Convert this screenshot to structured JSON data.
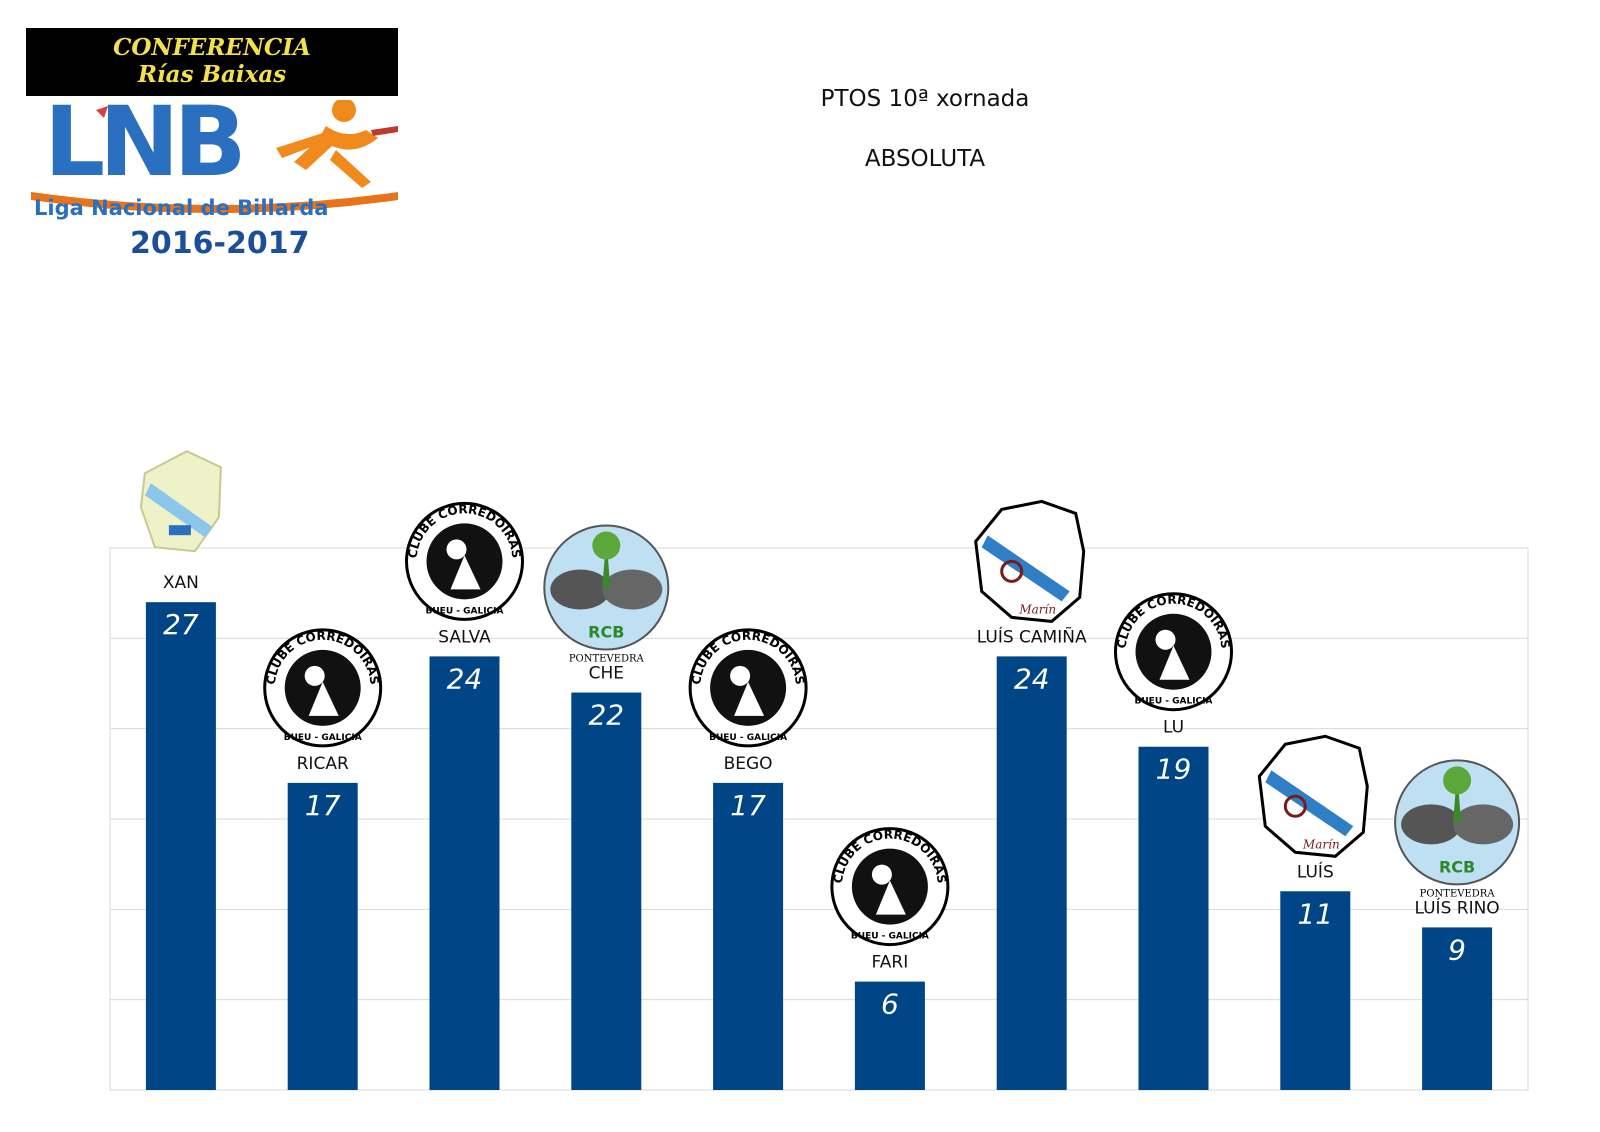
{
  "header": {
    "conference_line1": "CONFERENCIA",
    "conference_line2": "Rías Baixas",
    "logo_letters": "LNB",
    "league_name": "Liga Nacional de Billarda",
    "season": "2016-2017",
    "title": "PTOS 10ª xornada",
    "subtitle": "ABSOLUTA"
  },
  "colors": {
    "bar": "#004586",
    "grid": "#d9d9d9",
    "label": "#111111",
    "value": "#ffffff"
  },
  "chart_data": {
    "type": "bar",
    "title": "PTOS 10ª xornada",
    "subtitle": "ABSOLUTA",
    "categories": [
      "XAN",
      "RICAR",
      "SALVA",
      "CHE",
      "BEGO",
      "FARI",
      "LUÍS CAMIÑA",
      "LU",
      "LUÍS",
      "LUÍS RINO"
    ],
    "values": [
      27,
      17,
      24,
      22,
      17,
      6,
      24,
      19,
      11,
      9
    ],
    "ylim": [
      0,
      30
    ],
    "grid": true,
    "legend": "none",
    "data_labels": true
  },
  "club_logos": [
    {
      "category": "XAN",
      "icon": "lua-e-forza-logo"
    },
    {
      "category": "RICAR",
      "icon": "clube-corredoiras-logo",
      "text": "CLUBE CORREDOIRAS",
      "sub": "BUEU - GALICIA"
    },
    {
      "category": "SALVA",
      "icon": "clube-corredoiras-logo",
      "text": "CLUBE CORREDOIRAS",
      "sub": "BUEU - GALICIA"
    },
    {
      "category": "CHE",
      "icon": "rcb-pontevedra-logo",
      "text": "RCB",
      "sub": "PONTEVEDRA"
    },
    {
      "category": "BEGO",
      "icon": "clube-corredoiras-logo",
      "text": "CLUBE CORREDOIRAS",
      "sub": "BUEU - GALICIA"
    },
    {
      "category": "FARI",
      "icon": "clube-corredoiras-logo",
      "text": "CLUBE CORREDOIRAS",
      "sub": "BUEU - GALICIA"
    },
    {
      "category": "LUÍS CAMIÑA",
      "icon": "marin-galicia-map-logo",
      "text": "Marín"
    },
    {
      "category": "LU",
      "icon": "clube-corredoiras-logo",
      "text": "CLUBE CORREDOIRAS",
      "sub": "BUEU - GALICIA"
    },
    {
      "category": "LUÍS",
      "icon": "marin-galicia-map-logo",
      "text": "Marín"
    },
    {
      "category": "LUÍS RINO",
      "icon": "rcb-pontevedra-logo",
      "text": "RCB",
      "sub": "PONTEVEDRA"
    }
  ]
}
